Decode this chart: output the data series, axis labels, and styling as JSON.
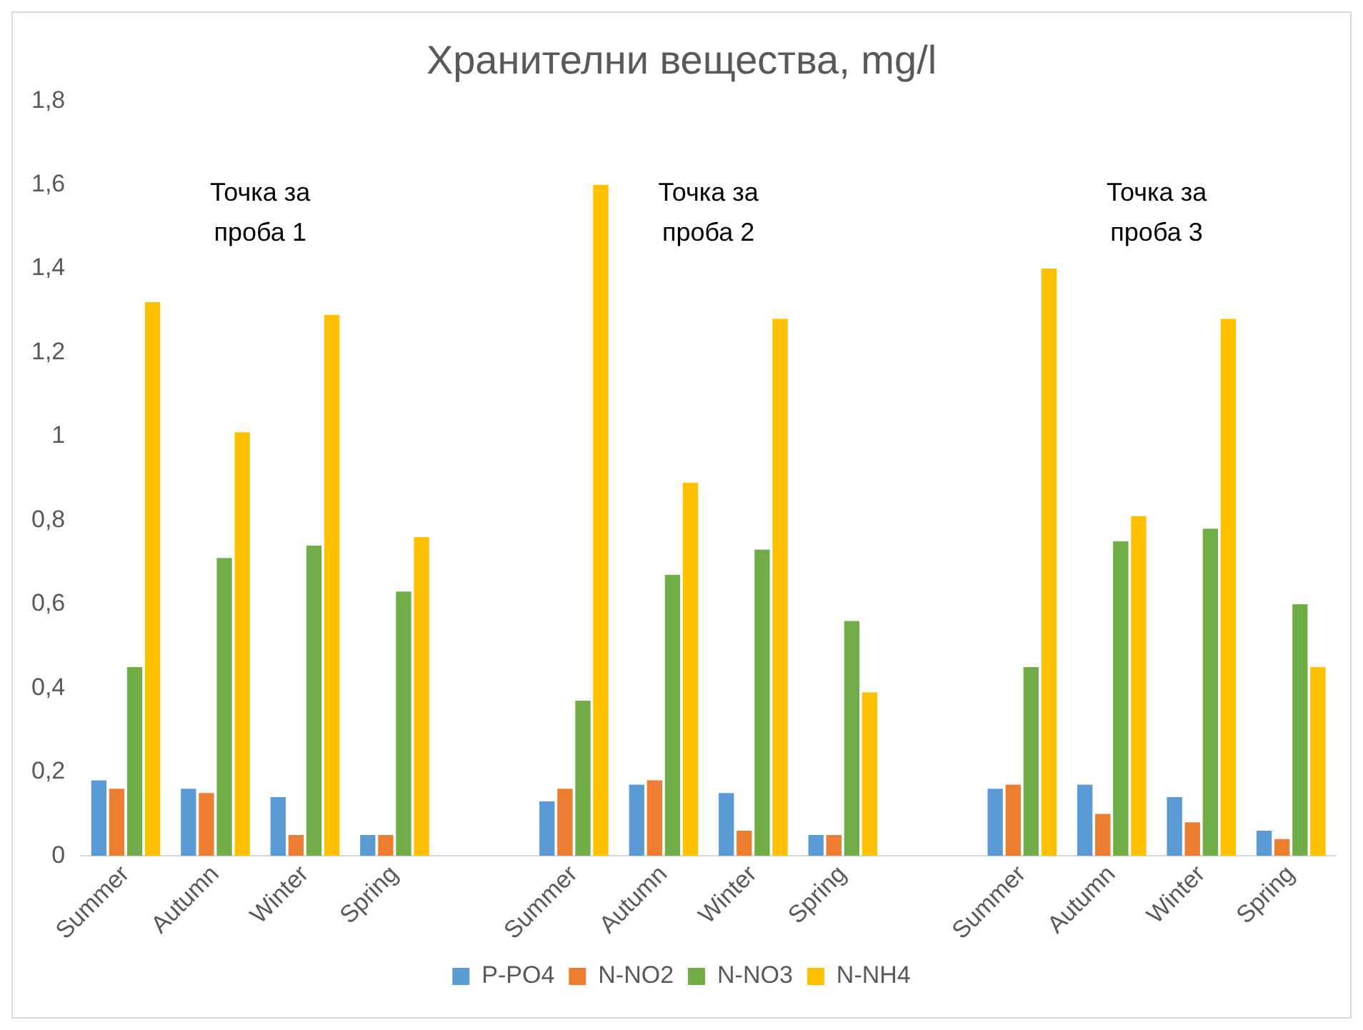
{
  "chart_data": {
    "type": "bar",
    "title": "Хранителни вещества, mg/l",
    "categories": [
      "Summer",
      "Autumn",
      "Winter",
      "Spring",
      null,
      "Summer",
      "Autumn",
      "Winter",
      "Spring",
      null,
      "Summer",
      "Autumn",
      "Winter",
      "Spring"
    ],
    "series": [
      {
        "name": "P-PO4",
        "color": "#5b9bd5",
        "values": [
          0.18,
          0.16,
          0.14,
          0.05,
          null,
          0.13,
          0.17,
          0.15,
          0.05,
          null,
          0.16,
          0.17,
          0.14,
          0.06
        ]
      },
      {
        "name": "N-NO2",
        "color": "#ed7d31",
        "values": [
          0.16,
          0.15,
          0.05,
          0.05,
          null,
          0.16,
          0.18,
          0.06,
          0.05,
          null,
          0.17,
          0.1,
          0.08,
          0.04
        ]
      },
      {
        "name": "N-NO3",
        "color": "#70ad47",
        "values": [
          0.45,
          0.71,
          0.74,
          0.63,
          null,
          0.37,
          0.67,
          0.73,
          0.56,
          null,
          0.45,
          0.75,
          0.78,
          0.6
        ]
      },
      {
        "name": "N-NH4",
        "color": "#ffc000",
        "values": [
          1.32,
          1.01,
          1.29,
          0.76,
          null,
          1.6,
          0.89,
          1.28,
          0.39,
          null,
          1.4,
          0.81,
          1.28,
          0.45
        ]
      }
    ],
    "ylim": [
      0,
      1.8
    ],
    "yticks": [
      0,
      {
        "value": 0.2,
        "label": "0,2"
      },
      {
        "value": 0.4,
        "label": "0,4"
      },
      {
        "value": 0.6,
        "label": "0,6"
      },
      {
        "value": 0.8,
        "label": "0,8"
      },
      1,
      {
        "value": 1.2,
        "label": "1,2"
      },
      {
        "value": 1.4,
        "label": "1,4"
      },
      {
        "value": 1.6,
        "label": "1,6"
      },
      {
        "value": 1.8,
        "label": "1,8"
      }
    ],
    "grid": false,
    "legend": "bottom",
    "annotations": [
      "Точка за проба 1",
      "Точка за проба 2",
      "Точка за проба 3"
    ]
  }
}
